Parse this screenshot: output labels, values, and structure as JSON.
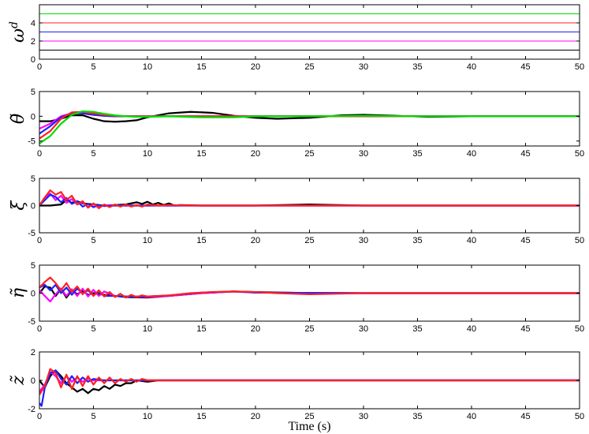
{
  "chart_data": [
    {
      "type": "line",
      "ylabel": "ω",
      "ylabel_sup": "d",
      "xlim": [
        0,
        50
      ],
      "ylim": [
        0,
        6
      ],
      "yticks": [
        0,
        2,
        4
      ],
      "xticks": [
        0,
        5,
        10,
        15,
        20,
        25,
        30,
        35,
        40,
        45,
        50
      ],
      "series": [
        {
          "color": "#00dd00",
          "x": [
            0,
            50
          ],
          "y": [
            5,
            5
          ]
        },
        {
          "color": "#ff2020",
          "x": [
            0,
            50
          ],
          "y": [
            4,
            4
          ]
        },
        {
          "color": "#2020ff",
          "x": [
            0,
            50
          ],
          "y": [
            3,
            3
          ]
        },
        {
          "color": "#ff00ff",
          "x": [
            0,
            50
          ],
          "y": [
            2,
            2
          ]
        },
        {
          "color": "#000000",
          "x": [
            0,
            50
          ],
          "y": [
            1,
            1
          ]
        }
      ]
    },
    {
      "type": "line",
      "ylabel": "θ̃",
      "xlim": [
        0,
        50
      ],
      "ylim": [
        -6,
        5
      ],
      "yticks": [
        -5,
        0,
        5
      ],
      "xticks": [
        0,
        5,
        10,
        15,
        20,
        25,
        30,
        35,
        40,
        45,
        50
      ],
      "series": [
        {
          "color": "#000000",
          "x": [
            0,
            1,
            2,
            3,
            4,
            5,
            6,
            7,
            8,
            9,
            10,
            12,
            14,
            16,
            18,
            20,
            22,
            25,
            28,
            30,
            33,
            36,
            40,
            45,
            50
          ],
          "y": [
            -1,
            -1,
            -0.5,
            0.2,
            0.2,
            -0.5,
            -1.0,
            -1.1,
            -1.0,
            -0.8,
            -0.2,
            0.6,
            0.9,
            0.7,
            0.1,
            -0.3,
            -0.5,
            -0.3,
            0.2,
            0.3,
            0.1,
            -0.1,
            0.0,
            0.0,
            0.0
          ]
        },
        {
          "color": "#ff00ff",
          "x": [
            0,
            1,
            2,
            3,
            4,
            5,
            6,
            7,
            8,
            9,
            10,
            12,
            15,
            20,
            30,
            50
          ],
          "y": [
            -2.5,
            -1.5,
            0,
            0.6,
            0.6,
            0.3,
            0.1,
            0.0,
            0.0,
            0.0,
            0.0,
            0.0,
            0.0,
            0.0,
            0.0,
            0.0
          ]
        },
        {
          "color": "#2020ff",
          "x": [
            0,
            1,
            2,
            3,
            4,
            5,
            6,
            7,
            8,
            10,
            12,
            15,
            20,
            30,
            50
          ],
          "y": [
            -3.5,
            -2.0,
            -0.2,
            0.6,
            0.6,
            0.3,
            0.1,
            0.0,
            0.0,
            0.0,
            0.0,
            0.0,
            0.0,
            0.0,
            0.0
          ]
        },
        {
          "color": "#ff2020",
          "x": [
            0,
            1,
            2,
            3,
            4,
            5,
            6,
            7,
            8,
            10,
            12,
            15,
            20,
            30,
            50
          ],
          "y": [
            -4.5,
            -3.0,
            -0.5,
            0.8,
            0.9,
            0.6,
            0.3,
            0.1,
            0.0,
            0.0,
            0.0,
            0.0,
            0.0,
            0.0,
            0.0
          ]
        },
        {
          "color": "#00dd00",
          "x": [
            0,
            1,
            2,
            3,
            4,
            5,
            6,
            7,
            8,
            9,
            10,
            12,
            15,
            18,
            20,
            25,
            30,
            35,
            40,
            50
          ],
          "y": [
            -5.5,
            -4.0,
            -1.5,
            0.3,
            1.0,
            0.9,
            0.5,
            0.2,
            0.0,
            -0.1,
            -0.1,
            0.0,
            -0.2,
            -0.2,
            0.0,
            0.0,
            0.1,
            0.0,
            0.0,
            0.0
          ]
        }
      ]
    },
    {
      "type": "line",
      "ylabel": "ξ",
      "xlim": [
        0,
        50
      ],
      "ylim": [
        -5,
        5
      ],
      "yticks": [
        -5,
        0,
        5
      ],
      "xticks": [
        0,
        5,
        10,
        15,
        20,
        25,
        30,
        35,
        40,
        45,
        50
      ],
      "series": [
        {
          "color": "#000000",
          "x": [
            0,
            1,
            2,
            2.5,
            3,
            3.5,
            4,
            5,
            6,
            7,
            8,
            9,
            9.5,
            10,
            10.5,
            11,
            11.5,
            12,
            12.5,
            13,
            15,
            20,
            25,
            30,
            50
          ],
          "y": [
            0,
            0,
            0.2,
            1.0,
            0.5,
            0.8,
            0.4,
            0.2,
            0.0,
            0.1,
            0.2,
            0.6,
            0.3,
            0.7,
            0.2,
            0.5,
            0.1,
            0.4,
            0.0,
            0.1,
            0.0,
            0.0,
            0.2,
            0.0,
            0.0
          ]
        },
        {
          "color": "#ff00ff",
          "x": [
            0,
            0.5,
            1,
            1.5,
            2,
            2.5,
            3,
            3.5,
            4,
            4.5,
            5,
            5.5,
            6,
            7,
            8,
            10,
            12,
            15,
            50
          ],
          "y": [
            0,
            1.5,
            2.2,
            1.0,
            1.8,
            0.5,
            1.2,
            0.2,
            0.6,
            -0.2,
            0.2,
            -0.1,
            0.1,
            0.0,
            0.0,
            0.0,
            0.0,
            0.0,
            0.0
          ]
        },
        {
          "color": "#2020ff",
          "x": [
            0,
            0.5,
            1,
            1.5,
            2,
            2.5,
            3,
            3.5,
            4,
            4.5,
            5,
            5.5,
            6,
            7,
            8,
            10,
            12,
            15,
            50
          ],
          "y": [
            0,
            1.0,
            2.0,
            1.6,
            0.6,
            1.4,
            0.3,
            0.8,
            -0.2,
            0.3,
            -0.3,
            0.1,
            -0.1,
            0.0,
            0.0,
            0.0,
            0.0,
            0.0,
            0.0
          ]
        },
        {
          "color": "#ff2020",
          "x": [
            0,
            0.5,
            1,
            1.5,
            2,
            2.5,
            3,
            3.5,
            4,
            4.5,
            5,
            5.5,
            6,
            6.5,
            7,
            7.5,
            8,
            8.5,
            9,
            9.5,
            10,
            11,
            12,
            14,
            17,
            20,
            30,
            50
          ],
          "y": [
            0,
            1.5,
            2.8,
            2.0,
            2.5,
            1.0,
            1.8,
            0.2,
            0.8,
            -0.4,
            0.4,
            -0.5,
            0.2,
            -0.3,
            0.2,
            -0.2,
            0.2,
            -0.2,
            0.1,
            -0.2,
            0.2,
            0.0,
            0.1,
            0.0,
            0.0,
            0.0,
            0.0,
            0.0
          ]
        }
      ]
    },
    {
      "type": "line",
      "ylabel": "η̃",
      "xlim": [
        0,
        50
      ],
      "ylim": [
        -5,
        5
      ],
      "yticks": [
        -5,
        0,
        5
      ],
      "xticks": [
        0,
        5,
        10,
        15,
        20,
        25,
        30,
        35,
        40,
        45,
        50
      ],
      "series": [
        {
          "color": "#000000",
          "x": [
            0,
            0.5,
            1,
            1.5,
            2,
            2.5,
            3,
            3.5,
            4,
            4.5,
            5,
            6,
            7,
            8,
            10,
            12,
            15,
            18,
            20,
            25,
            30,
            50
          ],
          "y": [
            0,
            1.2,
            1.0,
            -0.5,
            0.8,
            -0.8,
            0.5,
            -0.2,
            0.4,
            -0.3,
            0.0,
            -0.3,
            -0.5,
            -0.7,
            -0.8,
            -0.5,
            0.0,
            0.3,
            0.2,
            0.0,
            0.0,
            0.0
          ]
        },
        {
          "color": "#ff00ff",
          "x": [
            0,
            0.5,
            1,
            1.5,
            2,
            2.5,
            3,
            3.5,
            4,
            4.5,
            5,
            5.5,
            6,
            7,
            8,
            10,
            12,
            15,
            18,
            20,
            30,
            50
          ],
          "y": [
            0.5,
            -0.5,
            -1.5,
            -0.2,
            0.8,
            -0.5,
            0.7,
            -0.5,
            0.8,
            -0.6,
            0.6,
            -0.5,
            0.3,
            -0.5,
            -0.6,
            -0.7,
            -0.5,
            0.0,
            0.3,
            0.1,
            0.0,
            0.0
          ]
        },
        {
          "color": "#2020ff",
          "x": [
            0,
            0.5,
            1,
            1.5,
            2,
            2.5,
            3,
            3.5,
            4,
            4.5,
            5,
            5.5,
            6,
            7,
            8,
            10,
            12,
            15,
            18,
            20,
            30,
            50
          ],
          "y": [
            1.0,
            1.5,
            0.5,
            1.5,
            0.0,
            1.0,
            -0.3,
            0.8,
            0.0,
            0.5,
            -0.4,
            0.3,
            -0.5,
            -0.5,
            -0.6,
            -0.6,
            -0.4,
            0.1,
            0.3,
            0.1,
            0.0,
            0.0
          ]
        },
        {
          "color": "#ff2020",
          "x": [
            0,
            0.5,
            1,
            1.5,
            2,
            2.5,
            3,
            3.5,
            4,
            4.5,
            5,
            5.5,
            6,
            6.5,
            7,
            7.5,
            8,
            8.5,
            9,
            9.5,
            10,
            11,
            12,
            14,
            16,
            18,
            20,
            22,
            25,
            30,
            35,
            40,
            50
          ],
          "y": [
            1.0,
            2.0,
            2.8,
            1.8,
            0.5,
            1.8,
            0.2,
            1.2,
            -0.2,
            0.8,
            -0.5,
            0.5,
            -0.6,
            0.2,
            -0.7,
            -0.1,
            -0.8,
            -0.3,
            -0.7,
            -0.4,
            -0.6,
            -0.5,
            -0.4,
            0.0,
            0.2,
            0.3,
            0.2,
            0.0,
            -0.2,
            0.0,
            0.0,
            0.0,
            0.0
          ]
        }
      ]
    },
    {
      "type": "line",
      "ylabel": "z̃",
      "xlabel": "Time (s)",
      "xlim": [
        0,
        50
      ],
      "ylim": [
        -2,
        2
      ],
      "yticks": [
        -2,
        0,
        2
      ],
      "xticks": [
        0,
        5,
        10,
        15,
        20,
        25,
        30,
        35,
        40,
        45,
        50
      ],
      "series": [
        {
          "color": "#000000",
          "x": [
            0,
            0.5,
            1,
            1.5,
            2,
            2.5,
            3,
            3.5,
            4,
            4.5,
            5,
            5.5,
            6,
            6.5,
            7,
            7.5,
            8,
            8.5,
            9,
            10,
            11,
            12,
            15,
            20,
            50
          ],
          "y": [
            0,
            -0.5,
            0.3,
            0.7,
            0.3,
            -0.2,
            -0.5,
            -0.8,
            -0.6,
            -0.9,
            -0.6,
            -0.7,
            -0.4,
            -0.6,
            -0.3,
            -0.4,
            -0.2,
            -0.2,
            0.0,
            -0.1,
            0.0,
            0.0,
            0.0,
            0.0,
            0.0
          ]
        },
        {
          "color": "#ff00ff",
          "x": [
            0,
            0.5,
            1,
            1.5,
            2,
            2.5,
            3,
            3.5,
            4,
            4.5,
            5,
            6,
            7,
            8,
            10,
            15,
            50
          ],
          "y": [
            -0.8,
            -0.3,
            0.6,
            0.3,
            -0.2,
            0.3,
            -0.1,
            0.2,
            -0.1,
            0.1,
            0.0,
            0.0,
            0.0,
            0.0,
            0.0,
            0.0,
            0.0
          ]
        },
        {
          "color": "#2020ff",
          "x": [
            0,
            0.2,
            0.5,
            1,
            1.5,
            2,
            2.5,
            3,
            3.5,
            4,
            4.5,
            5,
            6,
            7,
            8,
            10,
            15,
            50
          ],
          "y": [
            -1.6,
            -1.8,
            -0.5,
            0.5,
            0.7,
            0.1,
            -0.3,
            0.3,
            -0.2,
            0.2,
            -0.1,
            0.1,
            0.0,
            0.0,
            0.0,
            0.0,
            0.0,
            0.0
          ]
        },
        {
          "color": "#ff2020",
          "x": [
            0,
            0.5,
            1,
            1.5,
            2,
            2.5,
            3,
            3.5,
            4,
            4.5,
            5,
            5.5,
            6,
            6.5,
            7,
            7.5,
            8,
            8.5,
            9,
            9.5,
            10,
            11,
            12,
            15,
            20,
            50
          ],
          "y": [
            -1.0,
            -0.4,
            0.8,
            0.5,
            -0.5,
            0.4,
            -0.6,
            0.3,
            -0.4,
            0.3,
            -0.3,
            0.2,
            -0.2,
            0.2,
            -0.2,
            0.1,
            -0.1,
            0.1,
            -0.1,
            0.1,
            0.0,
            0.0,
            0.0,
            0.0,
            0.0,
            0.0
          ]
        }
      ]
    }
  ]
}
